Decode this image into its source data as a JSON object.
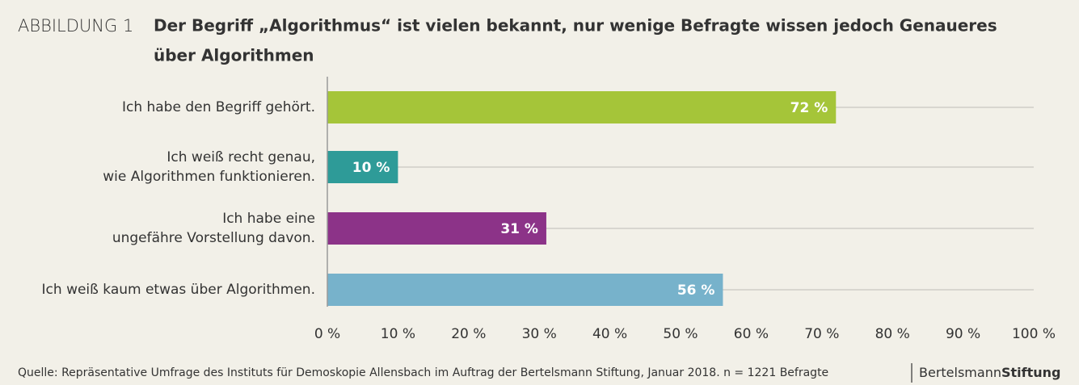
{
  "chart_data": {
    "type": "barh",
    "figure_label": "ABBILDUNG 1",
    "title": [
      "Der Begriff „Algorithmus“ ist vielen bekannt, nur wenige Befragte wissen jedoch Genaueres",
      "über Algorithmen"
    ],
    "categories": [
      [
        "Ich habe den Begriff gehört."
      ],
      [
        "Ich weiß recht genau,",
        "wie Algorithmen funktionieren."
      ],
      [
        "Ich habe eine",
        "ungefähre Vorstellung davon."
      ],
      [
        "Ich weiß kaum etwas über Algorithmen."
      ]
    ],
    "values": [
      72,
      10,
      31,
      56
    ],
    "value_labels": [
      "72 %",
      "10 %",
      "31 %",
      "56 %"
    ],
    "colors": [
      "#a5c539",
      "#2e9b98",
      "#8c3388",
      "#77b2cb"
    ],
    "xlim": [
      0,
      100
    ],
    "xticks": [
      {
        "value": 0,
        "label": "0 %"
      },
      {
        "value": 10,
        "label": "10 %"
      },
      {
        "value": 20,
        "label": "20 %"
      },
      {
        "value": 30,
        "label": "30 %"
      },
      {
        "value": 40,
        "label": "40 %"
      },
      {
        "value": 50,
        "label": "50 %"
      },
      {
        "value": 60,
        "label": "60 %"
      },
      {
        "value": 70,
        "label": "70 %"
      },
      {
        "value": 80,
        "label": "80 %"
      },
      {
        "value": 90,
        "label": "90 %"
      },
      {
        "value": 100,
        "label": "100 %"
      }
    ],
    "source": "Quelle: Repräsentative Umfrage des Instituts für Demoskopie Allensbach im Auftrag der Bertelsmann Stiftung, Januar 2018. n = 1221 Befragte",
    "brand": [
      "Bertelsmann",
      "Stiftung"
    ]
  }
}
